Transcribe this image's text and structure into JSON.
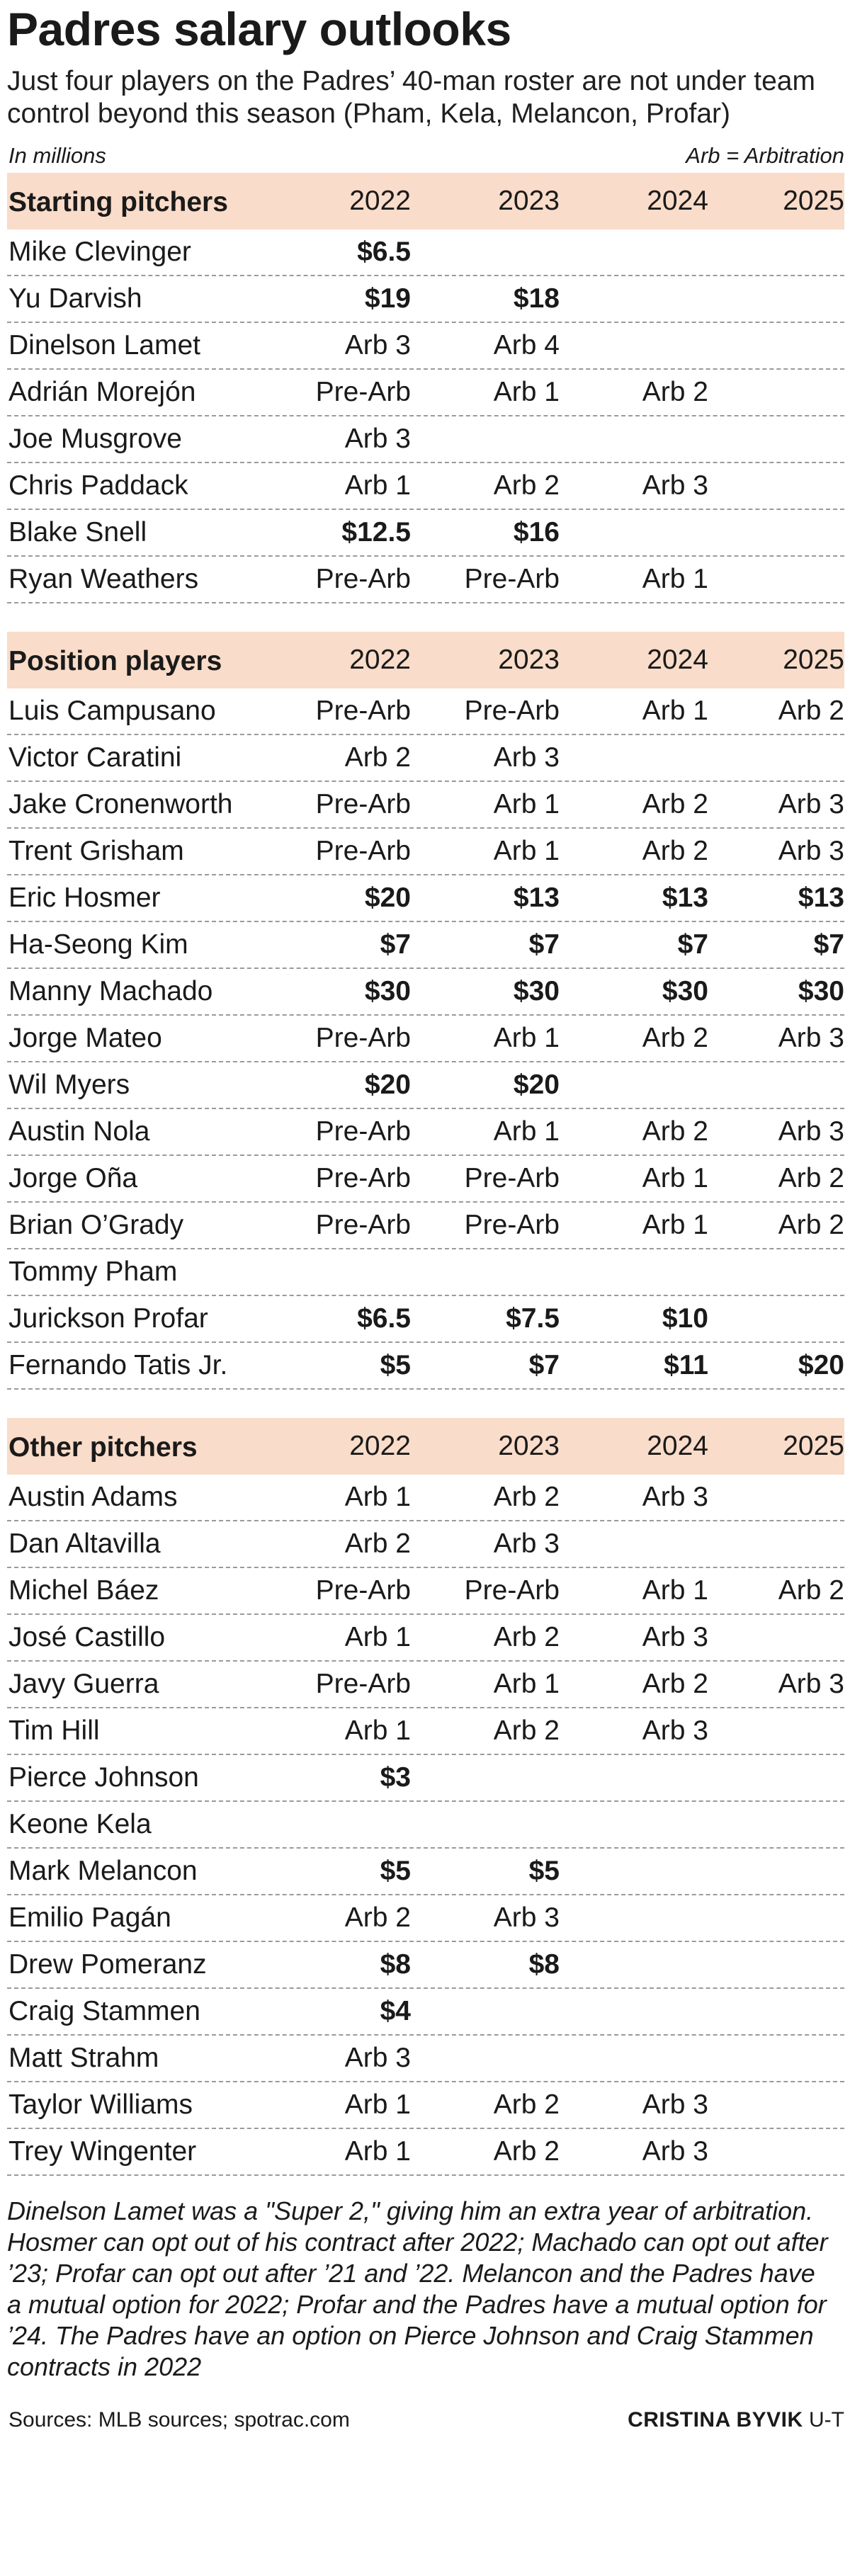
{
  "title": "Padres salary outlooks",
  "subtitle": "Just four players on the Padres’ 40-man roster are not under team control beyond this season (Pham, Kela, Melancon, Profar)",
  "units_left": "In millions",
  "units_right": "Arb = Arbitration",
  "years": [
    "2022",
    "2023",
    "2024",
    "2025"
  ],
  "sections": [
    {
      "name": "Starting pitchers",
      "rows": [
        {
          "player": "Mike Clevinger",
          "values": [
            "$6.5",
            "",
            "",
            ""
          ]
        },
        {
          "player": "Yu Darvish",
          "values": [
            "$19",
            "$18",
            "",
            ""
          ]
        },
        {
          "player": "Dinelson Lamet",
          "values": [
            "Arb 3",
            "Arb 4",
            "",
            ""
          ]
        },
        {
          "player": "Adrián Morejón",
          "values": [
            "Pre-Arb",
            "Arb 1",
            "Arb 2",
            ""
          ]
        },
        {
          "player": "Joe Musgrove",
          "values": [
            "Arb 3",
            "",
            "",
            ""
          ]
        },
        {
          "player": "Chris Paddack",
          "values": [
            "Arb 1",
            "Arb 2",
            "Arb 3",
            ""
          ]
        },
        {
          "player": "Blake Snell",
          "values": [
            "$12.5",
            "$16",
            "",
            ""
          ]
        },
        {
          "player": "Ryan Weathers",
          "values": [
            "Pre-Arb",
            "Pre-Arb",
            "Arb 1",
            ""
          ]
        }
      ]
    },
    {
      "name": "Position players",
      "rows": [
        {
          "player": "Luis Campusano",
          "values": [
            "Pre-Arb",
            "Pre-Arb",
            "Arb 1",
            "Arb 2"
          ]
        },
        {
          "player": "Victor Caratini",
          "values": [
            "Arb 2",
            "Arb 3",
            "",
            ""
          ]
        },
        {
          "player": "Jake Cronenworth",
          "values": [
            "Pre-Arb",
            "Arb 1",
            "Arb 2",
            "Arb 3"
          ]
        },
        {
          "player": "Trent Grisham",
          "values": [
            "Pre-Arb",
            "Arb 1",
            "Arb 2",
            "Arb 3"
          ]
        },
        {
          "player": "Eric Hosmer",
          "values": [
            "$20",
            "$13",
            "$13",
            "$13"
          ]
        },
        {
          "player": "Ha-Seong Kim",
          "values": [
            "$7",
            "$7",
            "$7",
            "$7"
          ]
        },
        {
          "player": "Manny Machado",
          "values": [
            "$30",
            "$30",
            "$30",
            "$30"
          ]
        },
        {
          "player": "Jorge Mateo",
          "values": [
            "Pre-Arb",
            "Arb 1",
            "Arb 2",
            "Arb 3"
          ]
        },
        {
          "player": "Wil Myers",
          "values": [
            "$20",
            "$20",
            "",
            ""
          ]
        },
        {
          "player": "Austin Nola",
          "values": [
            "Pre-Arb",
            "Arb 1",
            "Arb 2",
            "Arb 3"
          ]
        },
        {
          "player": "Jorge Oña",
          "values": [
            "Pre-Arb",
            "Pre-Arb",
            "Arb 1",
            "Arb 2"
          ]
        },
        {
          "player": "Brian O’Grady",
          "values": [
            "Pre-Arb",
            "Pre-Arb",
            "Arb 1",
            "Arb 2"
          ]
        },
        {
          "player": "Tommy Pham",
          "values": [
            "",
            "",
            "",
            ""
          ]
        },
        {
          "player": "Jurickson Profar",
          "values": [
            "$6.5",
            "$7.5",
            "$10",
            ""
          ]
        },
        {
          "player": "Fernando Tatis Jr.",
          "values": [
            "$5",
            "$7",
            "$11",
            "$20"
          ]
        }
      ]
    },
    {
      "name": "Other pitchers",
      "rows": [
        {
          "player": "Austin Adams",
          "values": [
            "Arb 1",
            "Arb 2",
            "Arb 3",
            ""
          ]
        },
        {
          "player": "Dan Altavilla",
          "values": [
            "Arb 2",
            "Arb 3",
            "",
            ""
          ]
        },
        {
          "player": "Michel Báez",
          "values": [
            "Pre-Arb",
            "Pre-Arb",
            "Arb 1",
            "Arb 2"
          ]
        },
        {
          "player": "José Castillo",
          "values": [
            "Arb 1",
            "Arb 2",
            "Arb 3",
            ""
          ]
        },
        {
          "player": "Javy Guerra",
          "values": [
            "Pre-Arb",
            "Arb 1",
            "Arb 2",
            "Arb 3"
          ]
        },
        {
          "player": "Tim Hill",
          "values": [
            "Arb 1",
            "Arb 2",
            "Arb 3",
            ""
          ]
        },
        {
          "player": "Pierce Johnson",
          "values": [
            "$3",
            "",
            "",
            ""
          ]
        },
        {
          "player": "Keone Kela",
          "values": [
            "",
            "",
            "",
            ""
          ]
        },
        {
          "player": "Mark Melancon",
          "values": [
            "$5",
            "$5",
            "",
            ""
          ]
        },
        {
          "player": "Emilio Pagán",
          "values": [
            "Arb 2",
            "Arb 3",
            "",
            ""
          ]
        },
        {
          "player": "Drew Pomeranz",
          "values": [
            "$8",
            "$8",
            "",
            ""
          ]
        },
        {
          "player": "Craig Stammen",
          "values": [
            "$4",
            "",
            "",
            ""
          ]
        },
        {
          "player": "Matt Strahm",
          "values": [
            "Arb 3",
            "",
            "",
            ""
          ]
        },
        {
          "player": "Taylor Williams",
          "values": [
            "Arb 1",
            "Arb 2",
            "Arb 3",
            ""
          ]
        },
        {
          "player": "Trey Wingenter",
          "values": [
            "Arb 1",
            "Arb 2",
            "Arb 3",
            ""
          ]
        }
      ]
    }
  ],
  "notes": "Dinelson Lamet was a \"Super 2,\" giving him an extra year of arbitration. Hosmer can opt out of his contract after 2022; Machado can opt out after ’23; Profar can opt out after ’21 and ’22. Melancon and the Padres have a mutual option for 2022; Profar and the Padres have a mutual option for ’24. The Padres have an option on Pierce Johnson and Craig Stammen contracts in 2022",
  "sources": "Sources: MLB sources; spotrac.com",
  "credit_name": "CRISTINA BYVIK",
  "credit_org": "U-T"
}
